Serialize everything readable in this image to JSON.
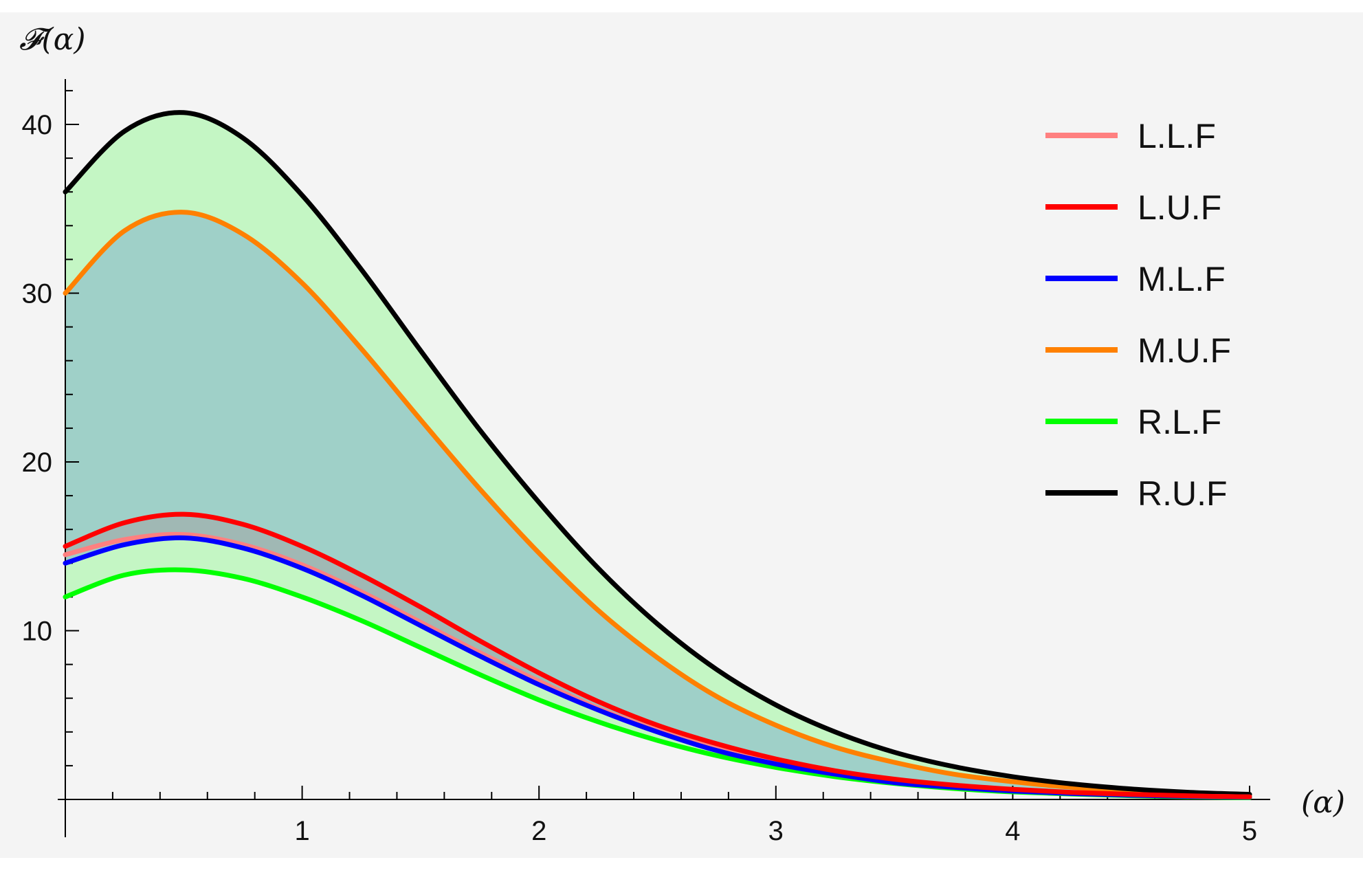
{
  "chart_data": {
    "type": "line",
    "ylabel": "𝓕(α)",
    "xlabel": "(α)",
    "xlim": [
      0,
      5
    ],
    "ylim": [
      0,
      43
    ],
    "x_ticks": [
      1,
      2,
      3,
      4,
      5
    ],
    "y_ticks": [
      10,
      20,
      30,
      40
    ],
    "grid": false,
    "legend_position": "top-right",
    "background": "#f4f4f4",
    "fill_outer_color": "#c4f6c4",
    "fill_inner_color": "#9fd0c8",
    "x": [
      0,
      0.25,
      0.5,
      0.75,
      1,
      1.25,
      1.5,
      1.75,
      2,
      2.25,
      2.5,
      2.75,
      3,
      3.25,
      3.5,
      3.75,
      4,
      4.25,
      4.5,
      4.75,
      5
    ],
    "series": [
      {
        "name": "L.L.F",
        "color": "#ff8080",
        "values": [
          14.5,
          15.4,
          15.7,
          15.1,
          13.9,
          12.3,
          10.5,
          8.7,
          7.0,
          5.4,
          4.1,
          3.0,
          2.2,
          1.6,
          1.1,
          0.8,
          0.55,
          0.4,
          0.28,
          0.2,
          0.15
        ]
      },
      {
        "name": "L.U.F",
        "color": "#ff0000",
        "values": [
          15.0,
          16.4,
          16.9,
          16.3,
          15.0,
          13.3,
          11.4,
          9.4,
          7.5,
          5.8,
          4.4,
          3.3,
          2.4,
          1.7,
          1.2,
          0.85,
          0.6,
          0.42,
          0.3,
          0.21,
          0.15
        ]
      },
      {
        "name": "M.L.F",
        "color": "#0000ff",
        "values": [
          14.0,
          15.1,
          15.5,
          14.9,
          13.7,
          12.1,
          10.3,
          8.5,
          6.8,
          5.3,
          4.0,
          2.9,
          2.1,
          1.5,
          1.0,
          0.72,
          0.5,
          0.35,
          0.25,
          0.18,
          0.13
        ]
      },
      {
        "name": "M.U.F",
        "color": "#ff8000",
        "values": [
          30.0,
          33.7,
          34.8,
          33.5,
          30.6,
          26.7,
          22.5,
          18.4,
          14.6,
          11.2,
          8.4,
          6.1,
          4.4,
          3.1,
          2.2,
          1.5,
          1.05,
          0.72,
          0.5,
          0.35,
          0.25
        ]
      },
      {
        "name": "R.L.F",
        "color": "#00ff00",
        "values": [
          12.0,
          13.3,
          13.6,
          13.1,
          12.0,
          10.6,
          9.0,
          7.4,
          5.9,
          4.6,
          3.5,
          2.6,
          1.9,
          1.35,
          0.95,
          0.65,
          0.45,
          0.32,
          0.22,
          0.15,
          0.1
        ]
      },
      {
        "name": "R.U.F",
        "color": "#000000",
        "values": [
          36.0,
          39.6,
          40.7,
          39.2,
          35.8,
          31.4,
          26.6,
          21.9,
          17.6,
          13.7,
          10.4,
          7.7,
          5.6,
          4.0,
          2.8,
          1.95,
          1.35,
          0.92,
          0.62,
          0.42,
          0.3
        ]
      }
    ]
  }
}
